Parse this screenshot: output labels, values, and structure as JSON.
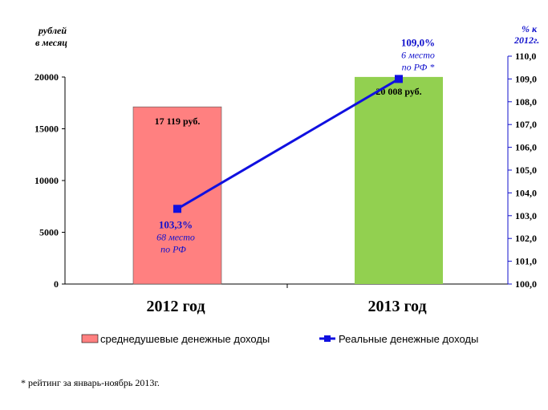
{
  "colors": {
    "bar_2012": "#ff8080",
    "bar_2013": "#92d050",
    "line": "#1010e0",
    "axis_right": "#1010cc"
  },
  "chart_data": {
    "type": "bar",
    "categories": [
      "2012 год",
      "2013 год"
    ],
    "series": [
      {
        "name": "среднедушевые денежные доходы",
        "axis": "left",
        "values": [
          17119,
          20008
        ],
        "labels": [
          "17 119 руб.",
          "20 008 руб."
        ]
      },
      {
        "name": "Реальные  денежные доходы",
        "type": "line",
        "axis": "right",
        "values": [
          103.3,
          109.0
        ],
        "labels": [
          "103,3%",
          "109,0%"
        ],
        "annotations": [
          [
            "68 место",
            "по РФ"
          ],
          [
            "6 место",
            "по РФ *"
          ]
        ]
      }
    ],
    "left_axis": {
      "title": [
        "рублей",
        "в месяц"
      ],
      "ylim": [
        0,
        20000
      ],
      "ticks": [
        "0",
        "5000",
        "10000",
        "15000",
        "20000"
      ]
    },
    "right_axis": {
      "title": [
        "% к",
        "2012г."
      ],
      "ylim": [
        100.0,
        110.0
      ],
      "ticks": [
        "100,0",
        "101,0",
        "102,0",
        "103,0",
        "104,0",
        "105,0",
        "106,0",
        "107,0",
        "108,0",
        "109,0",
        "110,0"
      ]
    },
    "grid": false,
    "legend_position": "bottom"
  },
  "footnote": "* рейтинг  за январь-ноябрь 2013г."
}
